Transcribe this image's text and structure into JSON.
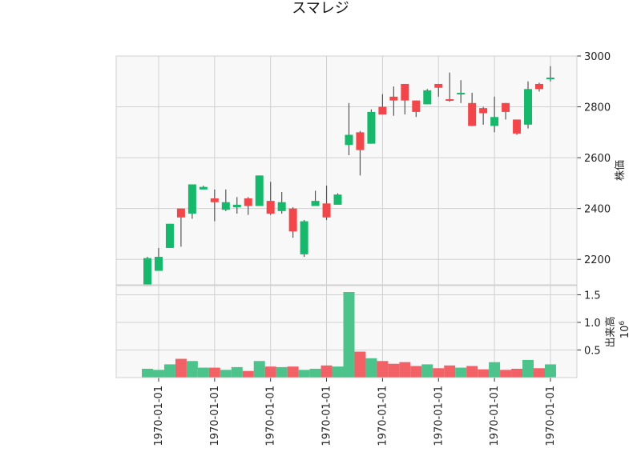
{
  "title": "スマレジ",
  "colors": {
    "up": "#16b86b",
    "down": "#f2464b",
    "volume_up": "#4cc38a",
    "volume_down": "#f26166",
    "grid": "#d0d0d0",
    "panel_bg": "#f8f8f8",
    "wick": "#555555"
  },
  "chart_data": {
    "type": "candlestick",
    "price_axis": {
      "label": "株価",
      "ylim": [
        2100,
        3000
      ],
      "ticks": [
        2200,
        2400,
        2600,
        2800,
        3000
      ]
    },
    "volume_axis": {
      "label": "出来高",
      "multiplier": "10^6",
      "ylim": [
        0,
        1.55
      ],
      "ticks": [
        0.5,
        1.0,
        1.5
      ],
      "tick_labels": [
        "0.5",
        "1.0",
        "1.5"
      ]
    },
    "x_tick_labels": [
      "1970-01-01",
      "1970-01-01",
      "1970-01-01",
      "1970-01-01",
      "1970-01-01",
      "1970-01-01",
      "1970-01-01",
      "1970-01-01"
    ],
    "x_tick_positions": [
      1,
      6,
      11,
      16,
      21,
      26,
      31,
      36
    ],
    "grid": true,
    "candles": [
      {
        "open": 2095,
        "high": 2210,
        "low": 2095,
        "close": 2205,
        "volume": 0.16
      },
      {
        "open": 2155,
        "high": 2245,
        "low": 2155,
        "close": 2210,
        "volume": 0.14
      },
      {
        "open": 2245,
        "high": 2340,
        "low": 2245,
        "close": 2340,
        "volume": 0.24
      },
      {
        "open": 2400,
        "high": 2400,
        "low": 2250,
        "close": 2365,
        "volume": 0.34
      },
      {
        "open": 2380,
        "high": 2495,
        "low": 2360,
        "close": 2495,
        "volume": 0.3
      },
      {
        "open": 2475,
        "high": 2490,
        "low": 2475,
        "close": 2485,
        "volume": 0.18
      },
      {
        "open": 2440,
        "high": 2475,
        "low": 2350,
        "close": 2425,
        "volume": 0.18
      },
      {
        "open": 2395,
        "high": 2475,
        "low": 2390,
        "close": 2425,
        "volume": 0.14
      },
      {
        "open": 2405,
        "high": 2445,
        "low": 2380,
        "close": 2415,
        "volume": 0.19
      },
      {
        "open": 2440,
        "high": 2445,
        "low": 2375,
        "close": 2410,
        "volume": 0.12
      },
      {
        "open": 2410,
        "high": 2530,
        "low": 2410,
        "close": 2530,
        "volume": 0.3
      },
      {
        "open": 2430,
        "high": 2505,
        "low": 2375,
        "close": 2380,
        "volume": 0.2
      },
      {
        "open": 2390,
        "high": 2465,
        "low": 2380,
        "close": 2425,
        "volume": 0.19
      },
      {
        "open": 2400,
        "high": 2405,
        "low": 2285,
        "close": 2310,
        "volume": 0.2
      },
      {
        "open": 2220,
        "high": 2355,
        "low": 2210,
        "close": 2350,
        "volume": 0.14
      },
      {
        "open": 2410,
        "high": 2470,
        "low": 2410,
        "close": 2430,
        "volume": 0.16
      },
      {
        "open": 2420,
        "high": 2490,
        "low": 2355,
        "close": 2365,
        "volume": 0.22
      },
      {
        "open": 2415,
        "high": 2460,
        "low": 2415,
        "close": 2455,
        "volume": 0.2
      },
      {
        "open": 2650,
        "high": 2815,
        "low": 2610,
        "close": 2690,
        "volume": 1.55
      },
      {
        "open": 2700,
        "high": 2705,
        "low": 2530,
        "close": 2630,
        "volume": 0.47
      },
      {
        "open": 2655,
        "high": 2790,
        "low": 2655,
        "close": 2780,
        "volume": 0.35
      },
      {
        "open": 2800,
        "high": 2850,
        "low": 2770,
        "close": 2770,
        "volume": 0.3
      },
      {
        "open": 2840,
        "high": 2880,
        "low": 2765,
        "close": 2825,
        "volume": 0.25
      },
      {
        "open": 2890,
        "high": 2890,
        "low": 2770,
        "close": 2825,
        "volume": 0.28
      },
      {
        "open": 2825,
        "high": 2825,
        "low": 2760,
        "close": 2780,
        "volume": 0.21
      },
      {
        "open": 2810,
        "high": 2870,
        "low": 2810,
        "close": 2865,
        "volume": 0.24
      },
      {
        "open": 2890,
        "high": 2890,
        "low": 2840,
        "close": 2875,
        "volume": 0.17
      },
      {
        "open": 2830,
        "high": 2935,
        "low": 2820,
        "close": 2825,
        "volume": 0.22
      },
      {
        "open": 2850,
        "high": 2905,
        "low": 2815,
        "close": 2855,
        "volume": 0.18
      },
      {
        "open": 2815,
        "high": 2855,
        "low": 2725,
        "close": 2725,
        "volume": 0.21
      },
      {
        "open": 2795,
        "high": 2800,
        "low": 2730,
        "close": 2775,
        "volume": 0.15
      },
      {
        "open": 2725,
        "high": 2840,
        "low": 2700,
        "close": 2760,
        "volume": 0.28
      },
      {
        "open": 2815,
        "high": 2815,
        "low": 2750,
        "close": 2780,
        "volume": 0.14
      },
      {
        "open": 2750,
        "high": 2750,
        "low": 2690,
        "close": 2695,
        "volume": 0.16
      },
      {
        "open": 2730,
        "high": 2900,
        "low": 2715,
        "close": 2870,
        "volume": 0.32
      },
      {
        "open": 2890,
        "high": 2895,
        "low": 2860,
        "close": 2870,
        "volume": 0.17
      },
      {
        "open": 2910,
        "high": 2960,
        "low": 2900,
        "close": 2915,
        "volume": 0.24
      }
    ]
  }
}
